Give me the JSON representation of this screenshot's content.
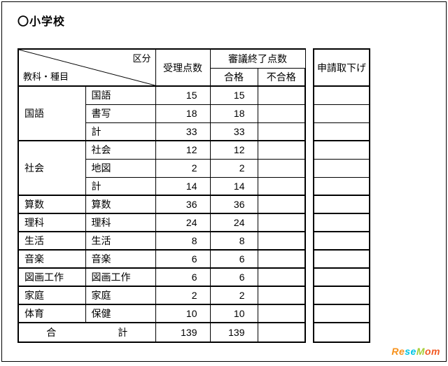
{
  "title": "〇小学校",
  "header": {
    "kubun": "区分",
    "kyoka": "教科・種目",
    "accepted": "受理点数",
    "shingi": "審議終了点数",
    "pass": "合格",
    "fail": "不合格",
    "withdraw": "申請取下げ"
  },
  "rows": [
    {
      "group": "国語",
      "item": "国語",
      "acc": 15,
      "pass": 15,
      "groupStart": true,
      "span": 3,
      "thick": true
    },
    {
      "group": "国語",
      "item": "書写",
      "acc": 18,
      "pass": 18
    },
    {
      "group": "国語",
      "item": "計",
      "acc": 33,
      "pass": 33
    },
    {
      "group": "社会",
      "item": "社会",
      "acc": 12,
      "pass": 12,
      "groupStart": true,
      "span": 3,
      "thick": true
    },
    {
      "group": "社会",
      "item": "地図",
      "acc": 2,
      "pass": 2
    },
    {
      "group": "社会",
      "item": "計",
      "acc": 14,
      "pass": 14
    },
    {
      "group": "算数",
      "item": "算数",
      "acc": 36,
      "pass": 36,
      "groupStart": true,
      "span": 1,
      "thick": true
    },
    {
      "group": "理科",
      "item": "理科",
      "acc": 24,
      "pass": 24,
      "groupStart": true,
      "span": 1,
      "thick": true
    },
    {
      "group": "生活",
      "item": "生活",
      "acc": 8,
      "pass": 8,
      "groupStart": true,
      "span": 1,
      "thick": true
    },
    {
      "group": "音楽",
      "item": "音楽",
      "acc": 6,
      "pass": 6,
      "groupStart": true,
      "span": 1,
      "thick": true
    },
    {
      "group": "図画工作",
      "item": "図画工作",
      "acc": 6,
      "pass": 6,
      "groupStart": true,
      "span": 1,
      "thick": true
    },
    {
      "group": "家庭",
      "item": "家庭",
      "acc": 2,
      "pass": 2,
      "groupStart": true,
      "span": 1,
      "thick": true
    },
    {
      "group": "体育",
      "item": "保健",
      "acc": 10,
      "pass": 10,
      "groupStart": true,
      "span": 1,
      "thick": true
    }
  ],
  "total": {
    "label": "合　　計",
    "acc": 139,
    "pass": 139
  },
  "watermark": {
    "re": "Re",
    "se": "se",
    "m": "M",
    "om": "om"
  }
}
